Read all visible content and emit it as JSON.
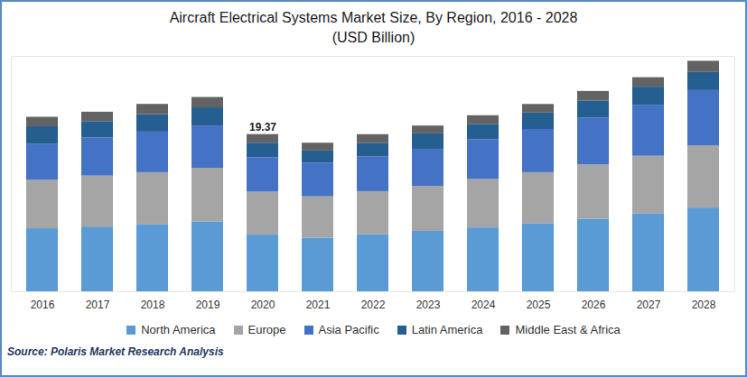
{
  "chart_data": {
    "type": "bar",
    "title": "Aircraft Electrical Systems Market Size, By Region, 2016 - 2028",
    "subtitle": "(USD Billion)",
    "source": "Source: Polaris Market Research Analysis",
    "categories": [
      "2016",
      "2017",
      "2018",
      "2019",
      "2020",
      "2021",
      "2022",
      "2023",
      "2024",
      "2025",
      "2026",
      "2027",
      "2028"
    ],
    "series": [
      {
        "name": "North America",
        "color": "#5b9bd5",
        "values": [
          7.77,
          7.98,
          8.3,
          8.62,
          6.99,
          6.6,
          7.02,
          7.45,
          7.87,
          8.4,
          8.94,
          9.57,
          10.32
        ]
      },
      {
        "name": "Europe",
        "color": "#a5a5a5",
        "values": [
          5.96,
          6.28,
          6.38,
          6.6,
          5.29,
          5.11,
          5.32,
          5.53,
          5.96,
          6.28,
          6.7,
          7.13,
          7.66
        ]
      },
      {
        "name": "Asia Pacific",
        "color": "#4472c4",
        "values": [
          4.47,
          4.68,
          5.0,
          5.21,
          4.23,
          4.15,
          4.26,
          4.57,
          4.89,
          5.32,
          5.74,
          6.28,
          6.81
        ]
      },
      {
        "name": "Latin America",
        "color": "#255e91",
        "values": [
          2.13,
          2.02,
          2.13,
          2.23,
          1.8,
          1.49,
          1.7,
          1.91,
          1.91,
          2.02,
          2.13,
          2.23,
          2.23
        ]
      },
      {
        "name": "Middle East & Africa",
        "color": "#636363",
        "values": [
          1.17,
          1.17,
          1.28,
          1.28,
          1.06,
          0.96,
          1.06,
          0.96,
          1.06,
          1.06,
          1.17,
          1.17,
          1.38
        ]
      }
    ],
    "annotations": [
      {
        "x": "2020",
        "y": 19.37,
        "label": "19.37"
      }
    ],
    "ylim": [
      0,
      29
    ],
    "yticks": [],
    "stacked": true,
    "grid": false,
    "legend": "bottom",
    "tick_labels": "x"
  }
}
